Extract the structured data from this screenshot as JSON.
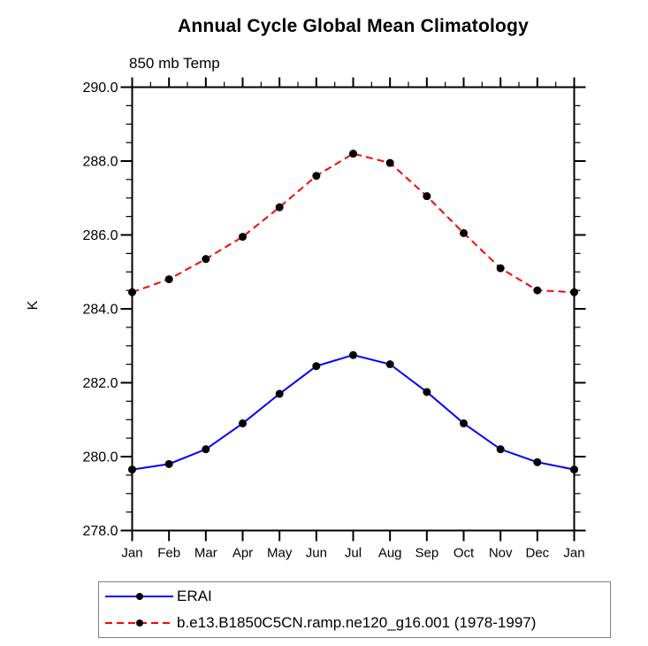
{
  "chart_data": {
    "type": "line",
    "title": "Annual Cycle Global Mean Climatology",
    "subtitle": "850 mb Temp",
    "ylabel": "K",
    "x_tick_labels": [
      "Jan",
      "Feb",
      "Mar",
      "Apr",
      "May",
      "Jun",
      "Jul",
      "Aug",
      "Sep",
      "Oct",
      "Nov",
      "Dec",
      "Jan"
    ],
    "ylim": [
      278.0,
      290.0
    ],
    "ytick_interval": 2.0,
    "ytick_minor_interval": 0.5,
    "ytick_labels": [
      "278.0",
      "280.0",
      "282.0",
      "284.0",
      "286.0",
      "288.0",
      "290.0"
    ],
    "grid": false,
    "legend_position": "bottom-left",
    "axis_color": "#000000",
    "marker_color": "#000000",
    "series": [
      {
        "name": "ERAI",
        "color": "#0000ff",
        "line_style": "solid",
        "marker": "filled-circle",
        "values": [
          279.65,
          279.8,
          280.2,
          280.9,
          281.7,
          282.45,
          282.75,
          282.5,
          281.75,
          280.9,
          280.2,
          279.85,
          279.65
        ]
      },
      {
        "name": "b.e13.B1850C5CN.ramp.ne120_g16.001 (1978-1997)",
        "color": "#ff0000",
        "line_style": "dashed",
        "marker": "filled-circle",
        "values": [
          284.45,
          284.8,
          285.35,
          285.95,
          286.75,
          287.6,
          288.2,
          287.95,
          287.05,
          286.05,
          285.1,
          284.5,
          284.45
        ]
      }
    ]
  }
}
